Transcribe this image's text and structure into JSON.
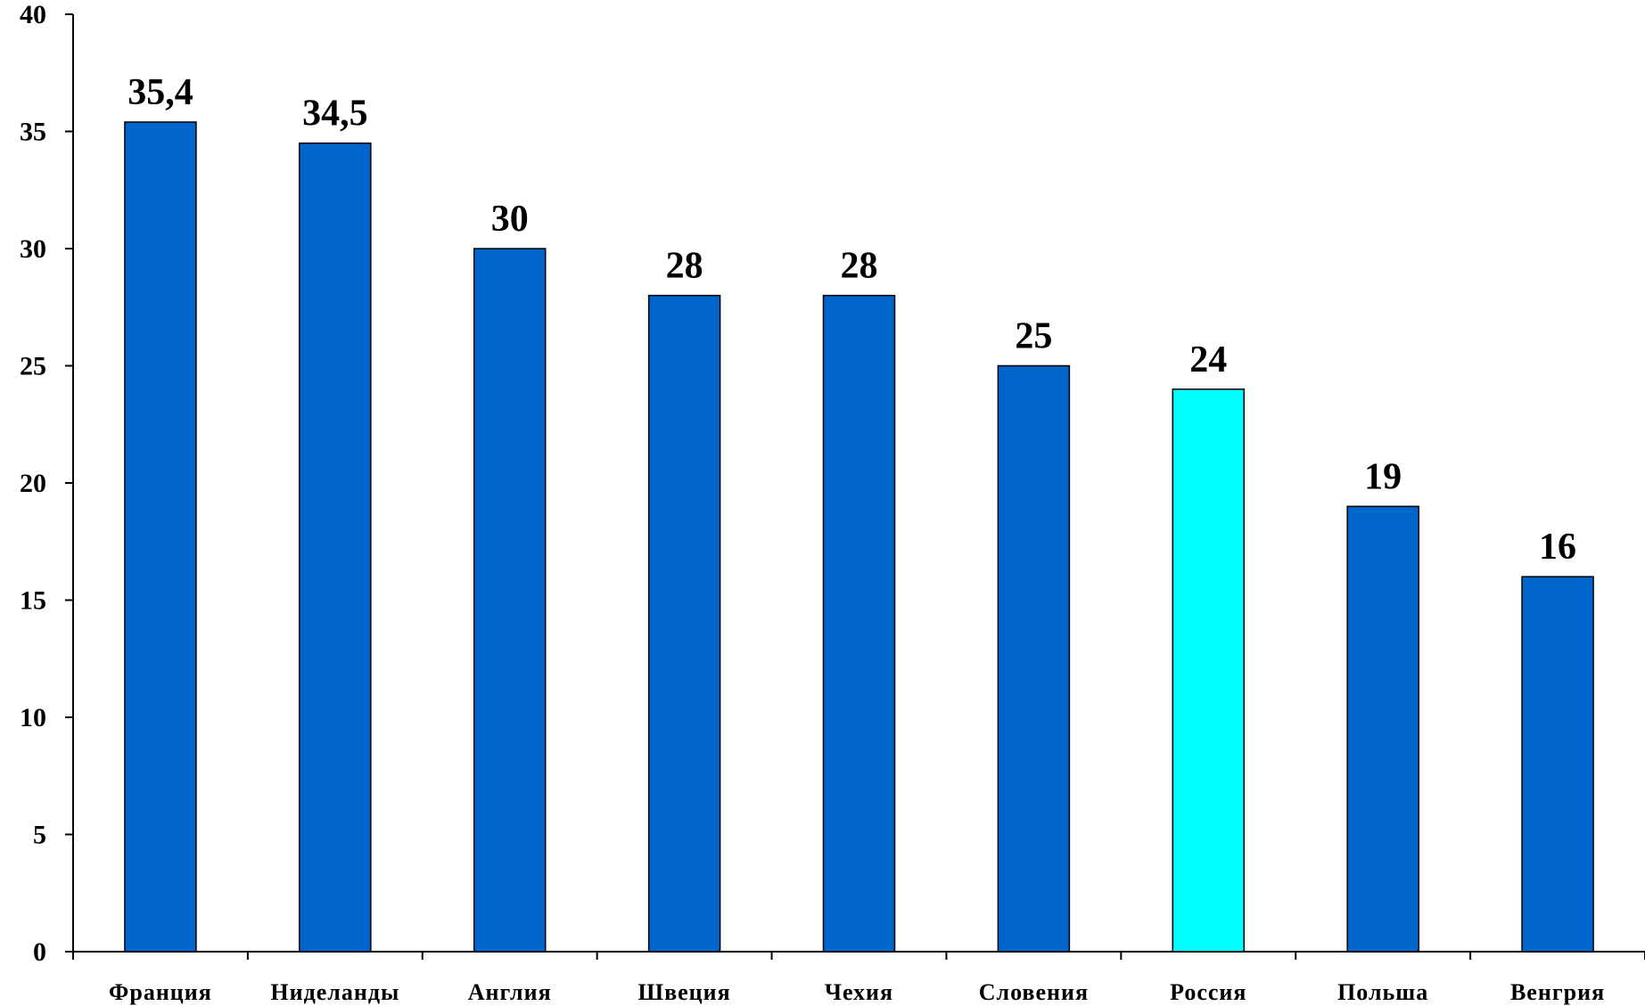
{
  "chart_data": {
    "type": "bar",
    "categories": [
      "Франция",
      "Ниделанды",
      "Англия",
      "Швеция",
      "Чехия",
      "Словения",
      "Россия",
      "Польша",
      "Венгрия"
    ],
    "values": [
      35.4,
      34.5,
      30,
      28,
      28,
      25,
      24,
      19,
      16
    ],
    "data_labels": [
      "35,4",
      "34,5",
      "30",
      "28",
      "28",
      "25",
      "24",
      "19",
      "16"
    ],
    "yticks": [
      "0",
      "5",
      "10",
      "15",
      "20",
      "25",
      "30",
      "35",
      "40"
    ],
    "ylim": [
      0,
      40
    ],
    "grid": false,
    "legend": "none",
    "colors": {
      "bar": "#0066CC",
      "highlight": "#00FFFF",
      "highlight_category": "Россия",
      "axis": "#000000"
    }
  }
}
